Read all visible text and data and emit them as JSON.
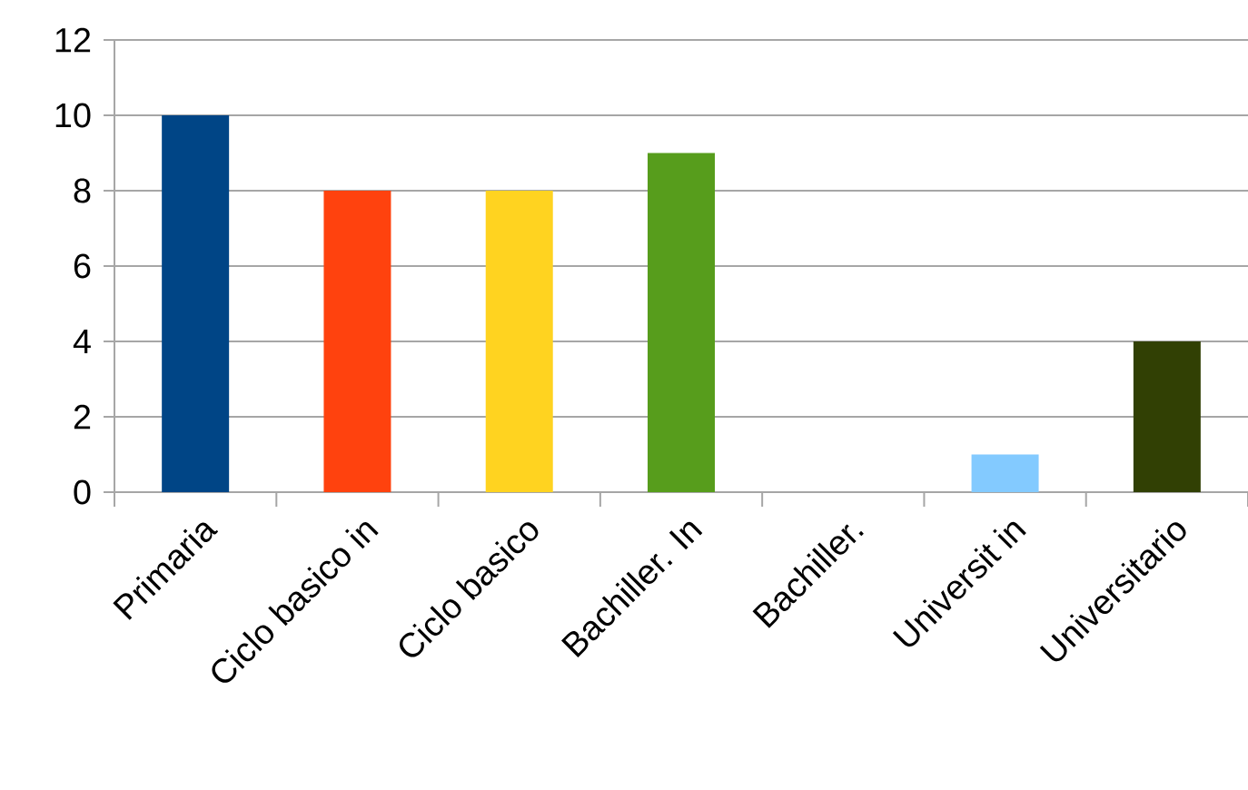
{
  "chart_data": {
    "type": "bar",
    "categories": [
      "Primaria",
      "Ciclo basico in",
      "Ciclo basico",
      "Bachiller. In",
      "Bachiller.",
      "Universit in",
      "Universitario"
    ],
    "values": [
      10,
      8,
      8,
      9,
      0,
      1,
      4
    ],
    "colors": [
      "#004586",
      "#ff420e",
      "#ffd320",
      "#579d1c",
      "#7e0021",
      "#83caff",
      "#314004"
    ],
    "ylim": [
      0,
      12
    ],
    "yticks": [
      0,
      2,
      4,
      6,
      8,
      10,
      12
    ],
    "grid": "y"
  }
}
